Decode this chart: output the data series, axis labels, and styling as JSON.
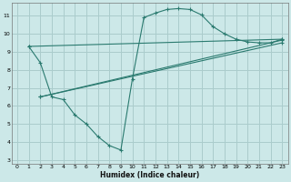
{
  "xlabel": "Humidex (Indice chaleur)",
  "bg_color": "#cce8e8",
  "grid_color": "#aacccc",
  "line_color": "#2a7a6f",
  "xlim": [
    -0.5,
    23.5
  ],
  "ylim": [
    2.8,
    11.7
  ],
  "yticks": [
    3,
    4,
    5,
    6,
    7,
    8,
    9,
    10,
    11
  ],
  "xticks": [
    0,
    1,
    2,
    3,
    4,
    5,
    6,
    7,
    8,
    9,
    10,
    11,
    12,
    13,
    14,
    15,
    16,
    17,
    18,
    19,
    20,
    21,
    22,
    23
  ],
  "line1_x": [
    1,
    2,
    3,
    4,
    5,
    6,
    7,
    8,
    9,
    10,
    11,
    12,
    13,
    14,
    15,
    16,
    17,
    18,
    19,
    20,
    21,
    22,
    23
  ],
  "line1_y": [
    9.3,
    8.4,
    6.5,
    6.35,
    5.5,
    5.0,
    4.3,
    3.8,
    3.55,
    7.5,
    10.9,
    11.15,
    11.35,
    11.4,
    11.35,
    11.05,
    10.4,
    10.0,
    9.7,
    9.55,
    9.5,
    9.5,
    9.7
  ],
  "line2_x": [
    1,
    23
  ],
  "line2_y": [
    9.3,
    9.7
  ],
  "line3_x": [
    2,
    23
  ],
  "line3_y": [
    6.5,
    9.5
  ],
  "line4_x": [
    2,
    23
  ],
  "line4_y": [
    6.5,
    9.65
  ]
}
